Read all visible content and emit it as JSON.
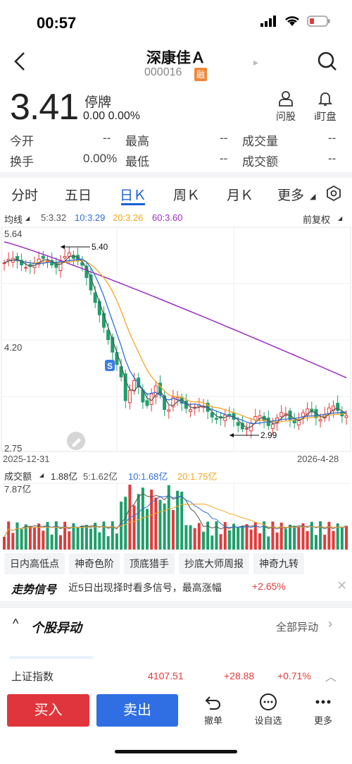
{
  "status_bar": {
    "time": "00:57"
  },
  "header": {
    "title": "深康佳Ａ",
    "code": "000016",
    "badge": "融"
  },
  "quote": {
    "price": "3.41",
    "status": "停牌",
    "change": "0.00",
    "change_pct": "0.00%"
  },
  "tools": [
    {
      "label": "问股",
      "icon": "person-icon"
    },
    {
      "label": "i盯盘",
      "icon": "bell-icon"
    }
  ],
  "stats": {
    "open_label": "今开",
    "open": "--",
    "high_label": "最高",
    "high": "--",
    "volume_label": "成交量",
    "volume": "--",
    "turnover_label": "换手",
    "turnover": "0.00%",
    "low_label": "最低",
    "low": "--",
    "amount_label": "成交额",
    "amount": "--"
  },
  "tabs": [
    "分时",
    "五日",
    "日Ｋ",
    "周Ｋ",
    "月Ｋ",
    "更多"
  ],
  "active_tab": 2,
  "ma": {
    "label": "均线",
    "ma5": "5:3.32",
    "ma10": "10:3.29",
    "ma20": "20:3.26",
    "ma60": "60:3.60",
    "adjust": "前复权"
  },
  "colors": {
    "ma5": "#555555",
    "ma10": "#2f6fd6",
    "ma20": "#f5a623",
    "ma60": "#9b2fc4",
    "up": "#e23b3b",
    "down": "#1f9e6b"
  },
  "chart_data": {
    "type": "candlestick",
    "y_top": "5.64",
    "y_mid": "4.20",
    "y_bottom": "2.75",
    "ylim": [
      2.75,
      5.64
    ],
    "date_start": "2025-12-31",
    "date_end": "2026-4-28",
    "high_marker": "5.40",
    "low_marker": "2.99",
    "signal_badge": "S"
  },
  "volume": {
    "label": "成交额",
    "value": "1.88亿",
    "ma5": "5:1.62亿",
    "ma10": "10:1.68亿",
    "ma20": "20:1.75亿",
    "ymax": "7.87亿"
  },
  "features": [
    "日内高低点",
    "神奇色阶",
    "顶底猎手",
    "抄底大师周报",
    "神奇九转"
  ],
  "signal": {
    "title": "走势信号",
    "text": "近5日出现择时看多信号，最高涨幅",
    "value": "+2.65%"
  },
  "section": {
    "title": "个股异动",
    "more": "全部异动"
  },
  "index": {
    "name": "上证指数",
    "value": "4107.51",
    "change": "+28.88",
    "pct": "+0.71%"
  },
  "bottom": {
    "buy": "买入",
    "sell": "卖出",
    "undo": "撤单",
    "watch": "设自选",
    "more": "更多"
  }
}
